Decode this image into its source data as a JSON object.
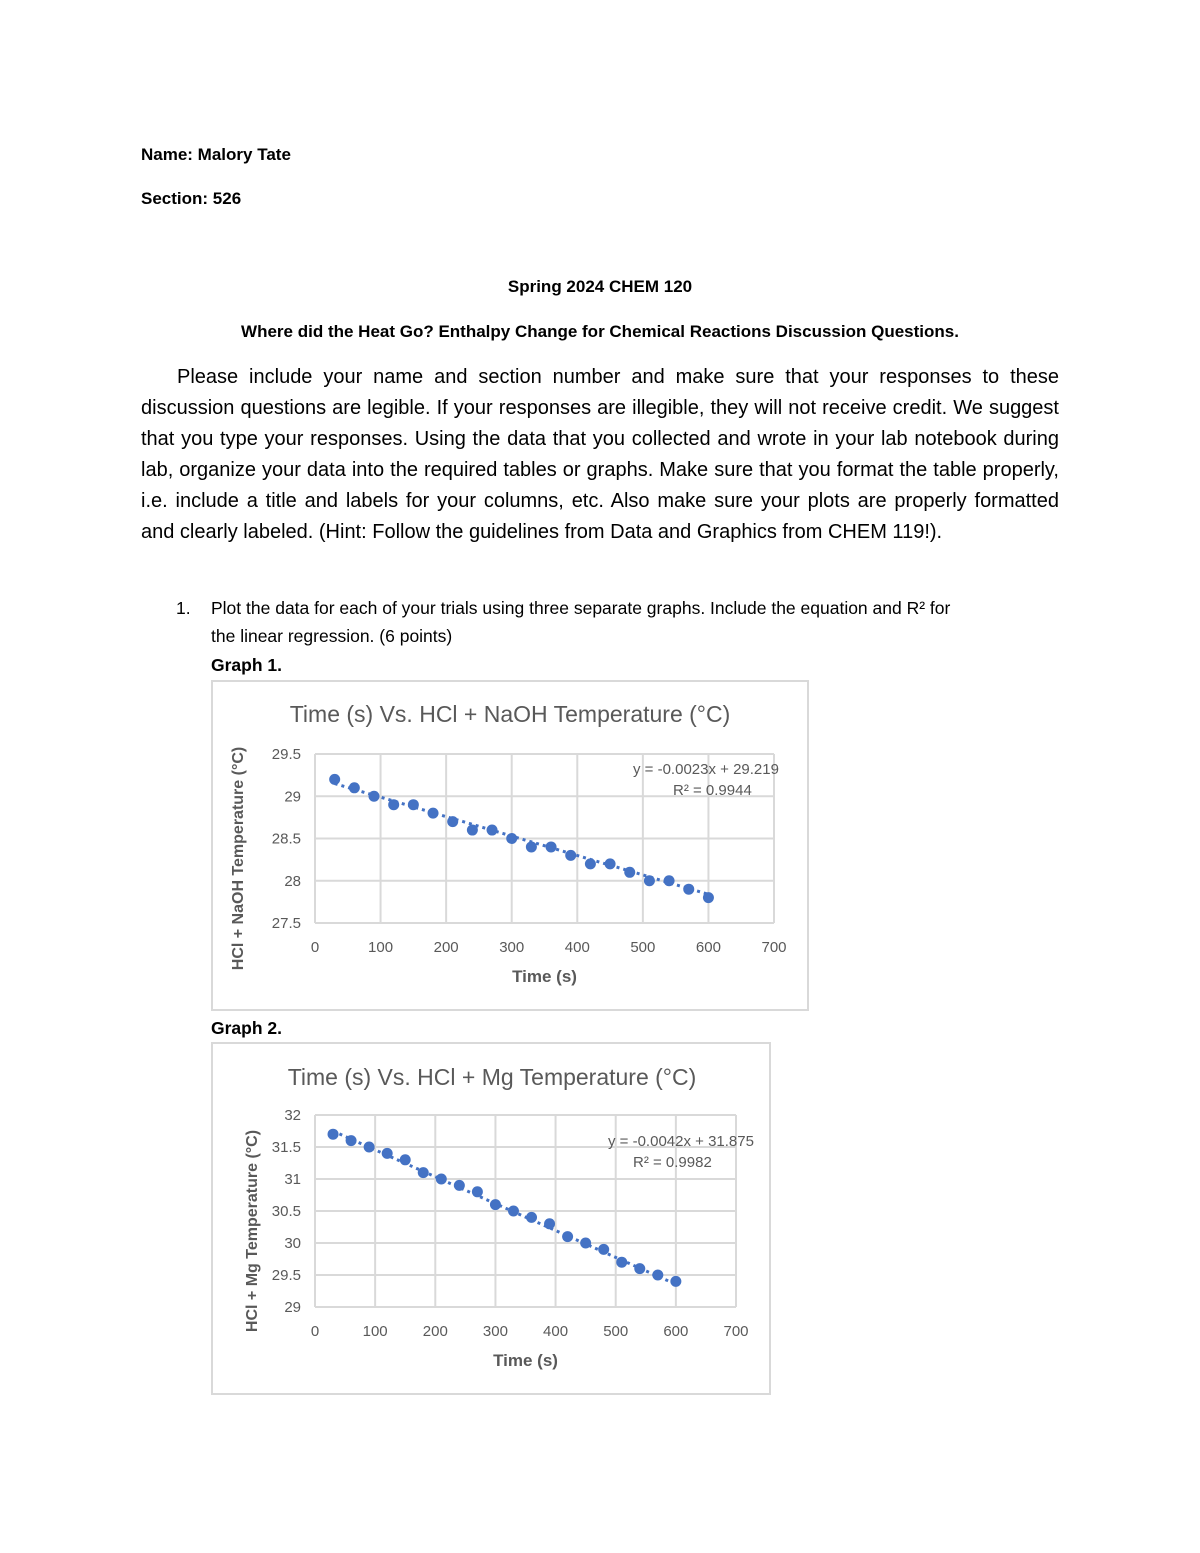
{
  "header": {
    "name_label": "Name: Malory Tate",
    "section_label": "Section: 526",
    "course": "Spring 2024 CHEM 120",
    "title": "Where did the Heat Go? Enthalpy Change for Chemical Reactions Discussion Questions."
  },
  "instructions": "Please include your name and section number and make sure that your responses to these discussion questions are legible. If your responses are illegible, they will not receive credit. We suggest that you type your responses. Using the data that you collected and wrote in your lab notebook during lab, organize your data into the required tables or graphs. Make sure that you format the table properly, i.e. include a title and labels for your columns, etc. Also make sure your plots are properly formatted and clearly labeled. (Hint: Follow the guidelines from Data and Graphics from CHEM 119!).",
  "question1": {
    "number": "1.",
    "text_line1": "Plot the data for each of your trials using three separate graphs. Include the equation and R² for",
    "text_line2": "the linear regression. (6 points)",
    "graph1_label": "Graph 1.",
    "graph2_label": "Graph 2."
  },
  "chart_data": [
    {
      "type": "scatter",
      "title": "Time (s) Vs. HCl + NaOH Temperature (°C)",
      "xlabel": "Time (s)",
      "ylabel": "HCl + NaOH Temperature (°C)",
      "xlim": [
        0,
        700
      ],
      "ylim": [
        27.5,
        29.5
      ],
      "xticks": [
        "0",
        "100",
        "200",
        "300",
        "400",
        "500",
        "600",
        "700"
      ],
      "yticks": [
        "27.5",
        "28",
        "28.5",
        "29",
        "29.5"
      ],
      "grid": true,
      "color": "#4472c4",
      "x": [
        30,
        60,
        90,
        120,
        150,
        180,
        210,
        240,
        270,
        300,
        330,
        360,
        390,
        420,
        450,
        480,
        510,
        540,
        570,
        600
      ],
      "y": [
        29.2,
        29.1,
        29.0,
        28.9,
        28.9,
        28.8,
        28.7,
        28.6,
        28.6,
        28.5,
        28.4,
        28.4,
        28.3,
        28.2,
        28.2,
        28.1,
        28.0,
        28.0,
        27.9,
        27.8
      ],
      "trendline": {
        "slope": -0.0023,
        "intercept": 29.219,
        "equation": "y = -0.0023x + 29.219",
        "r2": "R² = 0.9944"
      }
    },
    {
      "type": "scatter",
      "title": "Time (s) Vs. HCl + Mg Temperature (°C)",
      "xlabel": "Time (s)",
      "ylabel": "HCl + Mg Temperature (°C)",
      "xlim": [
        0,
        700
      ],
      "ylim": [
        29,
        32
      ],
      "xticks": [
        "0",
        "100",
        "200",
        "300",
        "400",
        "500",
        "600",
        "700"
      ],
      "yticks": [
        "29",
        "29.5",
        "30",
        "30.5",
        "31",
        "31.5",
        "32"
      ],
      "grid": true,
      "color": "#4472c4",
      "x": [
        30,
        60,
        90,
        120,
        150,
        180,
        210,
        240,
        270,
        300,
        330,
        360,
        390,
        420,
        450,
        480,
        510,
        540,
        570,
        600
      ],
      "y": [
        31.7,
        31.6,
        31.5,
        31.4,
        31.3,
        31.1,
        31.0,
        30.9,
        30.8,
        30.6,
        30.5,
        30.4,
        30.3,
        30.1,
        30.0,
        29.9,
        29.7,
        29.6,
        29.5,
        29.4
      ],
      "trendline": {
        "slope": -0.0042,
        "intercept": 31.875,
        "equation": "y = -0.0042x + 31.875",
        "r2": "R² = 0.9982"
      }
    }
  ]
}
